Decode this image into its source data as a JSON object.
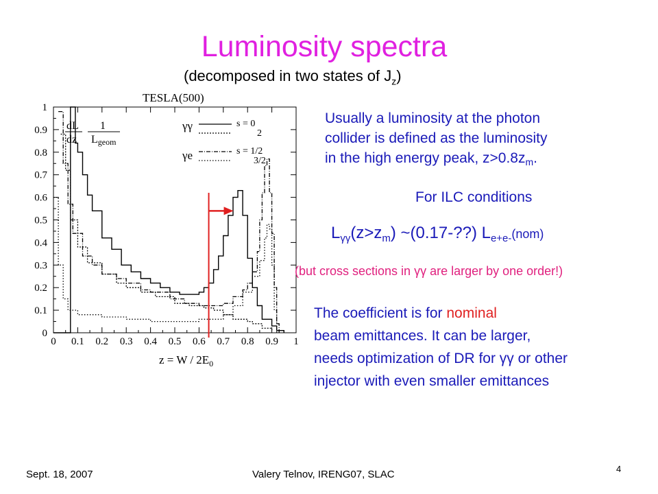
{
  "slide": {
    "title": "Luminosity spectra",
    "subtitle_main": "(decomposed in two states of J",
    "subtitle_sub": "z",
    "subtitle_end": ")"
  },
  "text": {
    "para1_line1": "Usually a luminosity at the photon",
    "para1_line2": "collider is defined as the luminosity",
    "para1_line3_a": "in the high energy peak, z>0.8z",
    "para1_line3_sub": "m",
    "para1_line3_b": ".",
    "ilc": "For ILC conditions",
    "formula_L": "L",
    "formula_gg": "γγ",
    "formula_mid": "(z>z",
    "formula_m": "m",
    "formula_val": ") ~(0.17-??) L",
    "formula_ee": "e+e-",
    "formula_nom": "(nom)",
    "cross_sections": "(but cross sections in γγ are larger by one order!)",
    "coef_line1_a": "The coefficient is for ",
    "coef_line1_b": "nominal",
    "coef_line2": "beam emittances. It can be  larger,",
    "coef_line3": "needs optimization of DR for γγ or other",
    "coef_line4": "injector with even smaller emittances"
  },
  "footer": {
    "date": "Sept. 18, 2007",
    "author": "Valery Telnov, IRENG07, SLAC",
    "page": "4"
  },
  "colors": {
    "title": "#e020e0",
    "body": "#1a1ab8",
    "accent": "#e0207e",
    "cut_line": "#e02020"
  },
  "chart_data": {
    "type": "line",
    "title": "TESLA(500)",
    "xlabel": "z = W / 2E",
    "xlabel_sub": "0",
    "ylabel_num": "dL",
    "ylabel_den": "dz",
    "ylabel_frac_num": "1",
    "ylabel_frac_den": "L",
    "ylabel_frac_den_sub": "geom",
    "xlim": [
      0,
      1
    ],
    "ylim": [
      0,
      1
    ],
    "x_ticks": [
      "0",
      "0.1",
      "0.2",
      "0.3",
      "0.4",
      "0.5",
      "0.6",
      "0.7",
      "0.8",
      "0.9",
      "1"
    ],
    "y_ticks": [
      "0",
      "0.1",
      "0.2",
      "0.3",
      "0.4",
      "0.5",
      "0.6",
      "0.7",
      "0.8",
      "0.9",
      "1"
    ],
    "legend": {
      "gg_label": "γγ",
      "ge_label": "γe",
      "entries": [
        {
          "label": "s = 0",
          "style": "solid"
        },
        {
          "label": "2",
          "style": "dotted"
        },
        {
          "label": "s = 1/2",
          "style": "dashdot"
        },
        {
          "label": "3/2",
          "style": "dotted"
        }
      ]
    },
    "cut_z": 0.64,
    "series": [
      {
        "style": "solid",
        "points": [
          [
            0,
            0.0
          ],
          [
            0.06,
            0.0
          ],
          [
            0.07,
            1.0
          ],
          [
            0.08,
            1.0
          ],
          [
            0.09,
            0.84
          ],
          [
            0.1,
            0.8
          ],
          [
            0.12,
            0.7
          ],
          [
            0.14,
            0.61
          ],
          [
            0.16,
            0.54
          ],
          [
            0.2,
            0.42
          ],
          [
            0.24,
            0.37
          ],
          [
            0.28,
            0.3
          ],
          [
            0.32,
            0.27
          ],
          [
            0.36,
            0.24
          ],
          [
            0.4,
            0.22
          ],
          [
            0.44,
            0.2
          ],
          [
            0.48,
            0.18
          ],
          [
            0.52,
            0.17
          ],
          [
            0.56,
            0.17
          ],
          [
            0.6,
            0.18
          ],
          [
            0.62,
            0.2
          ],
          [
            0.64,
            0.22
          ],
          [
            0.66,
            0.28
          ],
          [
            0.68,
            0.34
          ],
          [
            0.7,
            0.43
          ],
          [
            0.72,
            0.52
          ],
          [
            0.74,
            0.6
          ],
          [
            0.76,
            0.63
          ],
          [
            0.78,
            0.52
          ],
          [
            0.8,
            0.33
          ],
          [
            0.82,
            0.2
          ],
          [
            0.84,
            0.12
          ],
          [
            0.86,
            0.06
          ],
          [
            0.9,
            0.03
          ],
          [
            0.92,
            0.01
          ],
          [
            0.95,
            0.0
          ]
        ]
      },
      {
        "style": "dotted",
        "points": [
          [
            0.03,
            0.88
          ],
          [
            0.05,
            0.72
          ],
          [
            0.07,
            0.5
          ],
          [
            0.1,
            0.38
          ],
          [
            0.14,
            0.31
          ],
          [
            0.2,
            0.26
          ],
          [
            0.26,
            0.22
          ],
          [
            0.3,
            0.2
          ],
          [
            0.36,
            0.18
          ],
          [
            0.42,
            0.16
          ],
          [
            0.5,
            0.13
          ],
          [
            0.56,
            0.12
          ],
          [
            0.62,
            0.11
          ],
          [
            0.66,
            0.1
          ],
          [
            0.7,
            0.08
          ],
          [
            0.74,
            0.06
          ],
          [
            0.78,
            0.06
          ],
          [
            0.8,
            0.05
          ],
          [
            0.82,
            0.04
          ],
          [
            0.86,
            0.02
          ],
          [
            0.9,
            0.01
          ]
        ]
      },
      {
        "style": "dashdot",
        "points": [
          [
            0.02,
            0.98
          ],
          [
            0.04,
            0.75
          ],
          [
            0.06,
            0.57
          ],
          [
            0.08,
            0.44
          ],
          [
            0.12,
            0.34
          ],
          [
            0.16,
            0.3
          ],
          [
            0.2,
            0.26
          ],
          [
            0.26,
            0.24
          ],
          [
            0.3,
            0.22
          ],
          [
            0.36,
            0.19
          ],
          [
            0.4,
            0.18
          ],
          [
            0.48,
            0.15
          ],
          [
            0.54,
            0.13
          ],
          [
            0.6,
            0.12
          ],
          [
            0.66,
            0.12
          ],
          [
            0.7,
            0.13
          ],
          [
            0.74,
            0.16
          ],
          [
            0.78,
            0.19
          ],
          [
            0.8,
            0.22
          ],
          [
            0.82,
            0.27
          ],
          [
            0.84,
            0.36
          ],
          [
            0.85,
            0.5
          ],
          [
            0.86,
            0.62
          ],
          [
            0.87,
            0.74
          ],
          [
            0.88,
            0.77
          ],
          [
            0.89,
            0.62
          ],
          [
            0.9,
            0.44
          ],
          [
            0.91,
            0.2
          ],
          [
            0.92,
            0.04
          ],
          [
            0.93,
            0.0
          ]
        ]
      },
      {
        "style": "dotted2",
        "points": [
          [
            0.0,
            0.6
          ],
          [
            0.02,
            0.3
          ],
          [
            0.04,
            0.15
          ],
          [
            0.06,
            0.1
          ],
          [
            0.1,
            0.08
          ],
          [
            0.2,
            0.07
          ],
          [
            0.3,
            0.06
          ],
          [
            0.4,
            0.05
          ],
          [
            0.5,
            0.05
          ],
          [
            0.6,
            0.06
          ],
          [
            0.7,
            0.08
          ],
          [
            0.74,
            0.12
          ],
          [
            0.78,
            0.18
          ],
          [
            0.82,
            0.25
          ],
          [
            0.85,
            0.32
          ],
          [
            0.87,
            0.42
          ],
          [
            0.88,
            0.48
          ],
          [
            0.89,
            0.46
          ],
          [
            0.9,
            0.3
          ],
          [
            0.91,
            0.1
          ],
          [
            0.92,
            0.0
          ]
        ]
      }
    ]
  }
}
